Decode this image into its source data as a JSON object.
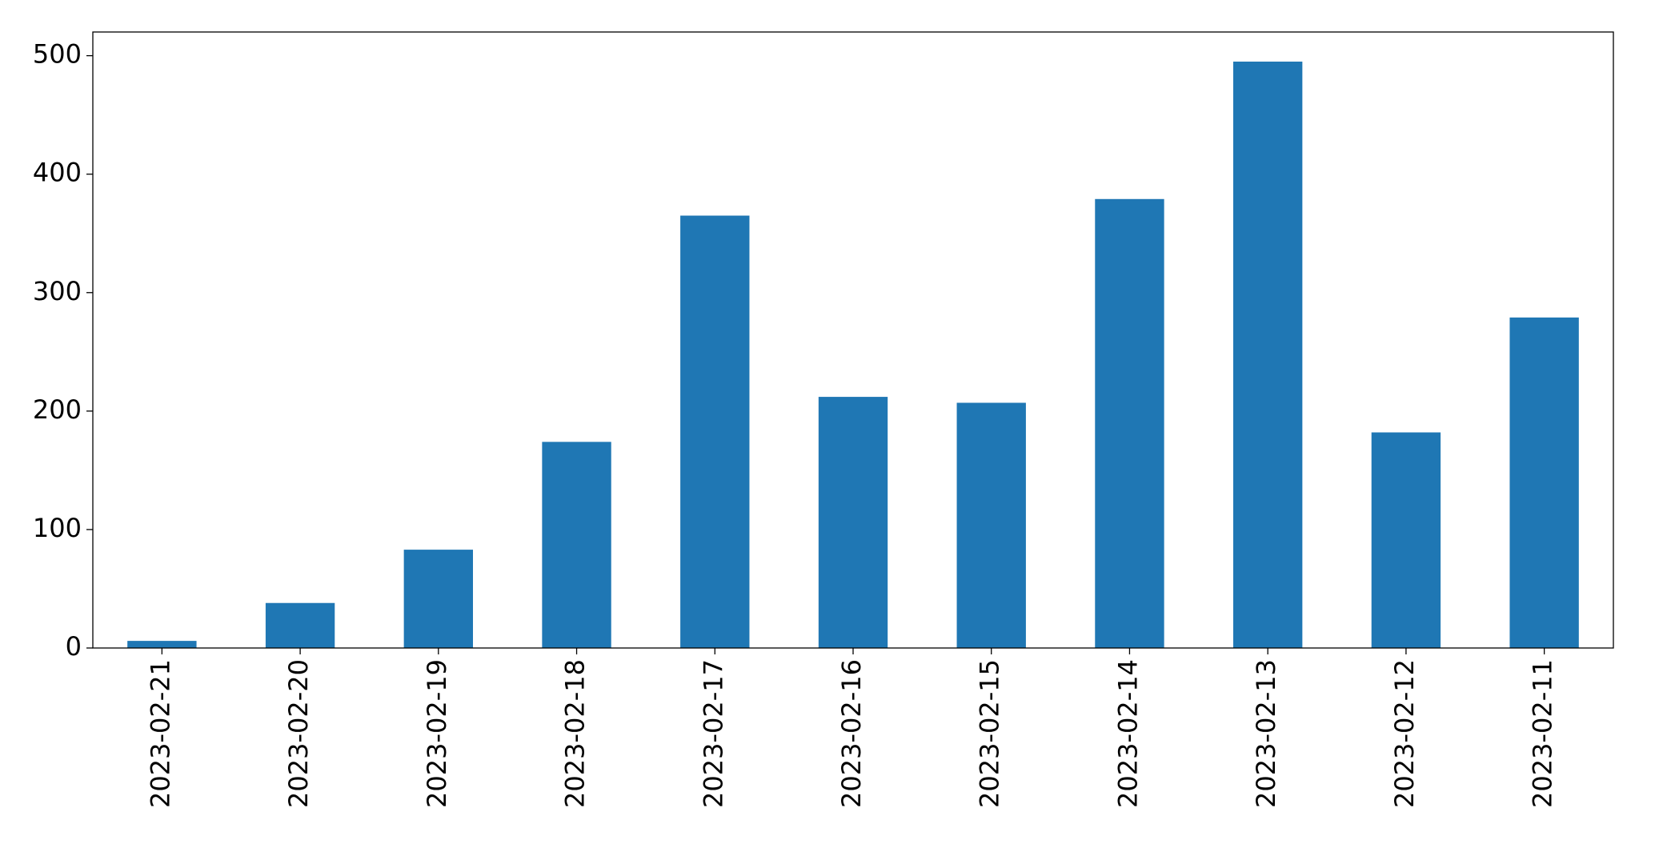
{
  "chart_data": {
    "type": "bar",
    "categories": [
      "2023-02-21",
      "2023-02-20",
      "2023-02-19",
      "2023-02-18",
      "2023-02-17",
      "2023-02-16",
      "2023-02-15",
      "2023-02-14",
      "2023-02-13",
      "2023-02-12",
      "2023-02-11"
    ],
    "values": [
      6,
      38,
      83,
      174,
      365,
      212,
      207,
      379,
      495,
      182,
      279
    ],
    "color": "#1f77b4",
    "ylim": [
      0,
      520
    ],
    "yticks": [
      0,
      100,
      200,
      300,
      400,
      500
    ],
    "grid": false
  }
}
